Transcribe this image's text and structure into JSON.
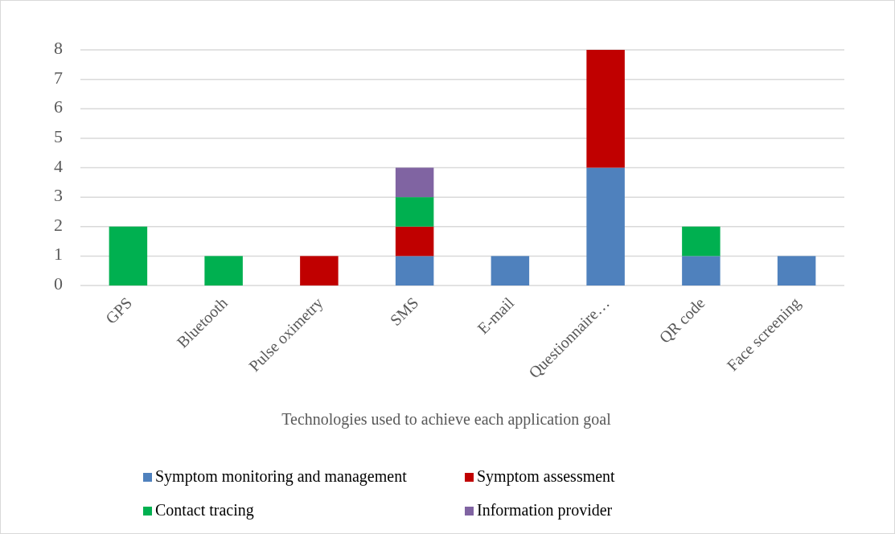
{
  "chart_data": {
    "type": "bar",
    "stacked": true,
    "xlabel": "Technologies used to achieve each application goal",
    "categories": [
      "GPS",
      "Bluetooth",
      "Pulse oximetry",
      "SMS",
      "E-mail",
      "Questionnaire…",
      "QR code",
      "Face screening"
    ],
    "series": [
      {
        "name": "Symptom monitoring and management",
        "color": "#4f81bd",
        "values": [
          0,
          0,
          0,
          1,
          1,
          4,
          1,
          1
        ]
      },
      {
        "name": "Symptom assessment",
        "color": "#c00000",
        "values": [
          0,
          0,
          1,
          1,
          0,
          4,
          0,
          0
        ]
      },
      {
        "name": "Contact tracing",
        "color": "#00b050",
        "values": [
          2,
          1,
          0,
          1,
          0,
          0,
          1,
          0
        ]
      },
      {
        "name": "Information provider",
        "color": "#8064a2",
        "values": [
          0,
          0,
          0,
          1,
          0,
          0,
          0,
          0
        ]
      }
    ],
    "ylim": [
      0,
      8
    ],
    "yticks": [
      0,
      1,
      2,
      3,
      4,
      5,
      6,
      7,
      8
    ],
    "grid": "y",
    "legend": "bottom"
  }
}
